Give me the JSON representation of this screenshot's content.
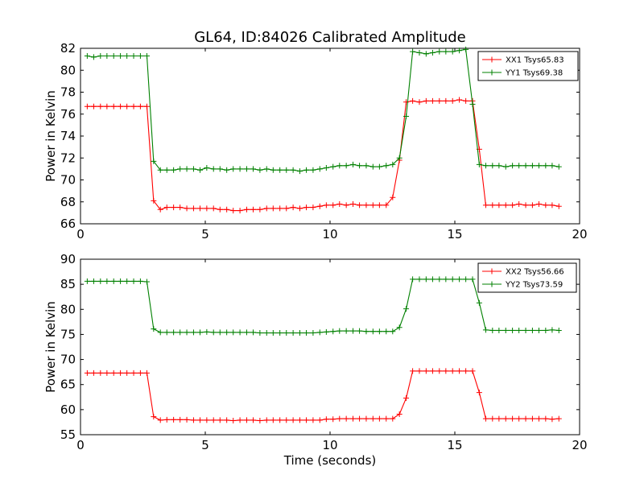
{
  "chart_data": [
    {
      "type": "line",
      "title": "GL64, ID:84026 Calibrated Amplitude",
      "xlabel": "",
      "ylabel": "Power in Kelvin",
      "xlim": [
        0,
        20
      ],
      "ylim": [
        66,
        82
      ],
      "xticks": [
        0,
        5,
        10,
        15,
        20
      ],
      "yticks": [
        66,
        68,
        70,
        72,
        74,
        76,
        78,
        80,
        82
      ],
      "legend_position": "top-right",
      "grid": false,
      "x": [
        0.27,
        0.53,
        0.8,
        1.06,
        1.33,
        1.6,
        1.86,
        2.13,
        2.4,
        2.66,
        2.93,
        3.2,
        3.46,
        3.73,
        3.99,
        4.26,
        4.53,
        4.79,
        5.06,
        5.33,
        5.59,
        5.86,
        6.12,
        6.39,
        6.66,
        6.92,
        7.19,
        7.46,
        7.72,
        7.99,
        8.25,
        8.52,
        8.79,
        9.05,
        9.32,
        9.59,
        9.85,
        10.12,
        10.38,
        10.65,
        10.92,
        11.18,
        11.45,
        11.72,
        11.98,
        12.25,
        12.51,
        12.78,
        13.05,
        13.31,
        13.58,
        13.85,
        14.11,
        14.38,
        14.64,
        14.91,
        15.18,
        15.44,
        15.71,
        15.98,
        16.24,
        16.51,
        16.77,
        17.04,
        17.31,
        17.57,
        17.84,
        18.11,
        18.37,
        18.64,
        18.9,
        19.17
      ],
      "series": [
        {
          "name": "XX1 Tsys65.83",
          "color": "#ff0000",
          "values": [
            76.7,
            76.7,
            76.7,
            76.7,
            76.7,
            76.7,
            76.7,
            76.7,
            76.7,
            76.7,
            68.1,
            67.3,
            67.5,
            67.5,
            67.5,
            67.4,
            67.4,
            67.4,
            67.4,
            67.4,
            67.3,
            67.3,
            67.2,
            67.2,
            67.3,
            67.3,
            67.3,
            67.4,
            67.4,
            67.4,
            67.4,
            67.5,
            67.4,
            67.5,
            67.5,
            67.6,
            67.7,
            67.7,
            67.8,
            67.7,
            67.8,
            67.7,
            67.7,
            67.7,
            67.7,
            67.7,
            68.4,
            71.8,
            77.1,
            77.2,
            77.1,
            77.2,
            77.2,
            77.2,
            77.2,
            77.2,
            77.3,
            77.2,
            77.2,
            72.8,
            67.7,
            67.7,
            67.7,
            67.7,
            67.7,
            67.8,
            67.7,
            67.7,
            67.8,
            67.7,
            67.7,
            67.6
          ]
        },
        {
          "name": "YY1 Tsys69.38",
          "color": "#008000",
          "values": [
            81.3,
            81.2,
            81.3,
            81.3,
            81.3,
            81.3,
            81.3,
            81.3,
            81.3,
            81.3,
            71.7,
            70.9,
            70.9,
            70.9,
            71.0,
            71.0,
            71.0,
            70.9,
            71.1,
            71.0,
            71.0,
            70.9,
            71.0,
            71.0,
            71.0,
            71.0,
            70.9,
            71.0,
            70.9,
            70.9,
            70.9,
            70.9,
            70.8,
            70.9,
            70.9,
            71.0,
            71.1,
            71.2,
            71.3,
            71.3,
            71.4,
            71.3,
            71.3,
            71.2,
            71.2,
            71.3,
            71.4,
            72.0,
            75.8,
            81.7,
            81.6,
            81.5,
            81.6,
            81.7,
            81.7,
            81.7,
            81.8,
            81.9,
            76.9,
            71.4,
            71.3,
            71.3,
            71.3,
            71.2,
            71.3,
            71.3,
            71.3,
            71.3,
            71.3,
            71.3,
            71.3,
            71.2
          ]
        }
      ]
    },
    {
      "type": "line",
      "title": "",
      "xlabel": "Time (seconds)",
      "ylabel": "Power in Kelvin",
      "xlim": [
        0,
        20
      ],
      "ylim": [
        55,
        90
      ],
      "xticks": [
        0,
        5,
        10,
        15,
        20
      ],
      "yticks": [
        55,
        60,
        65,
        70,
        75,
        80,
        85,
        90
      ],
      "legend_position": "top-right",
      "grid": false,
      "x": [
        0.27,
        0.53,
        0.8,
        1.06,
        1.33,
        1.6,
        1.86,
        2.13,
        2.4,
        2.66,
        2.93,
        3.2,
        3.46,
        3.73,
        3.99,
        4.26,
        4.53,
        4.79,
        5.06,
        5.33,
        5.59,
        5.86,
        6.12,
        6.39,
        6.66,
        6.92,
        7.19,
        7.46,
        7.72,
        7.99,
        8.25,
        8.52,
        8.79,
        9.05,
        9.32,
        9.59,
        9.85,
        10.12,
        10.38,
        10.65,
        10.92,
        11.18,
        11.45,
        11.72,
        11.98,
        12.25,
        12.51,
        12.78,
        13.05,
        13.31,
        13.58,
        13.85,
        14.11,
        14.38,
        14.64,
        14.91,
        15.18,
        15.44,
        15.71,
        15.98,
        16.24,
        16.51,
        16.77,
        17.04,
        17.31,
        17.57,
        17.84,
        18.11,
        18.37,
        18.64,
        18.9,
        19.17
      ],
      "series": [
        {
          "name": "XX2 Tsys56.66",
          "color": "#ff0000",
          "values": [
            67.3,
            67.3,
            67.3,
            67.3,
            67.3,
            67.3,
            67.3,
            67.3,
            67.3,
            67.3,
            58.6,
            57.9,
            58.0,
            58.0,
            58.0,
            58.0,
            57.9,
            57.9,
            57.9,
            57.9,
            57.9,
            57.9,
            57.8,
            57.9,
            57.9,
            57.9,
            57.8,
            57.9,
            57.9,
            57.9,
            57.9,
            57.9,
            57.9,
            57.9,
            57.9,
            57.9,
            58.1,
            58.1,
            58.2,
            58.2,
            58.2,
            58.2,
            58.2,
            58.2,
            58.2,
            58.2,
            58.2,
            59.1,
            62.3,
            67.7,
            67.7,
            67.7,
            67.7,
            67.7,
            67.7,
            67.7,
            67.7,
            67.7,
            67.7,
            63.4,
            58.2,
            58.2,
            58.2,
            58.2,
            58.2,
            58.2,
            58.2,
            58.2,
            58.2,
            58.2,
            58.1,
            58.2
          ]
        },
        {
          "name": "YY2 Tsys73.59",
          "color": "#008000",
          "values": [
            85.6,
            85.6,
            85.6,
            85.6,
            85.6,
            85.6,
            85.6,
            85.6,
            85.6,
            85.5,
            76.1,
            75.4,
            75.4,
            75.4,
            75.4,
            75.4,
            75.4,
            75.4,
            75.5,
            75.4,
            75.4,
            75.4,
            75.4,
            75.4,
            75.4,
            75.4,
            75.3,
            75.3,
            75.3,
            75.3,
            75.3,
            75.3,
            75.3,
            75.3,
            75.3,
            75.4,
            75.5,
            75.6,
            75.7,
            75.7,
            75.7,
            75.7,
            75.6,
            75.6,
            75.6,
            75.6,
            75.6,
            76.4,
            80.1,
            86.0,
            86.0,
            86.0,
            86.0,
            86.0,
            86.0,
            86.0,
            86.0,
            86.0,
            86.0,
            81.3,
            75.9,
            75.8,
            75.8,
            75.8,
            75.8,
            75.8,
            75.8,
            75.8,
            75.8,
            75.8,
            75.9,
            75.8
          ]
        }
      ]
    }
  ]
}
